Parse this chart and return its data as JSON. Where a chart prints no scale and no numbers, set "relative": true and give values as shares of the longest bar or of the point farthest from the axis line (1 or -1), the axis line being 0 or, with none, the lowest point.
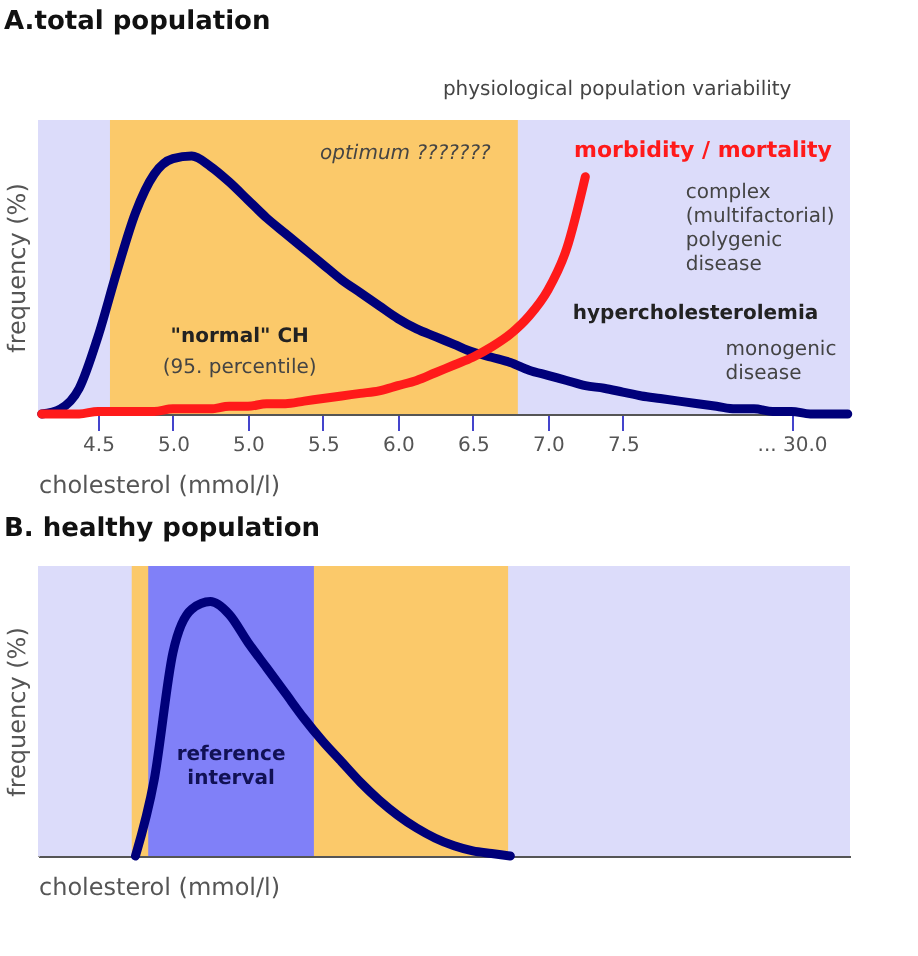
{
  "chart_data": [
    {
      "type": "line",
      "title": "A.total population",
      "xlabel": "cholesterol (mmol/l)",
      "ylabel": "frequency (%)",
      "relative": true,
      "grid": false,
      "tick_labels": "x",
      "line_style": "solid",
      "marker": "none",
      "categories": [
        null,
        null,
        null,
        "4.5",
        null,
        null,
        null,
        "5.0",
        null,
        null,
        null,
        "5.0",
        null,
        null,
        null,
        "5.5",
        null,
        null,
        null,
        "6.0",
        null,
        null,
        null,
        "6.5",
        null,
        null,
        null,
        "7.0",
        null,
        null,
        null,
        "7.5",
        null,
        null,
        null,
        null,
        null,
        null,
        null,
        null,
        "... 30.0",
        null,
        null,
        null
      ],
      "series": [
        {
          "color": "#00007a",
          "values": [
            0,
            0.02,
            0.1,
            0.3,
            0.55,
            0.78,
            0.93,
            0.99,
            1,
            0.96,
            0.9,
            0.83,
            0.76,
            0.7,
            0.64,
            0.58,
            0.52,
            0.47,
            0.42,
            0.37,
            0.33,
            0.3,
            0.27,
            0.24,
            0.22,
            0.2,
            0.17,
            0.15,
            0.13,
            0.11,
            0.1,
            0.085,
            0.07,
            0.06,
            0.05,
            0.04,
            0.03,
            0.02,
            0.02,
            0.01,
            0.01,
            0,
            0,
            0
          ]
        },
        {
          "name": "morbidity / mortality",
          "color": "#ff1a1a",
          "values": [
            0,
            0,
            0,
            0.01,
            0.01,
            0.01,
            0.01,
            0.02,
            0.02,
            0.02,
            0.03,
            0.03,
            0.04,
            0.04,
            0.05,
            0.06,
            0.07,
            0.08,
            0.09,
            0.11,
            0.13,
            0.16,
            0.19,
            0.22,
            0.26,
            0.31,
            0.38,
            0.48,
            0.64,
            0.92,
            null,
            null,
            null,
            null,
            null,
            null,
            null,
            null,
            null,
            null,
            null,
            null,
            null,
            null
          ]
        }
      ],
      "annotations": [
        "physiological population variability",
        "optimum ???????",
        "complex\n(multifactorial)\npolygenic\ndisease",
        "hypercholesterolemia",
        "monogenic\ndisease",
        "\"normal\" CH",
        "(95. percentile)"
      ]
    },
    {
      "type": "line",
      "title": "B. healthy population",
      "xlabel": "cholesterol (mmol/l)",
      "ylabel": "frequency (%)",
      "relative": true,
      "grid": false,
      "tick_labels": false,
      "line_style": "solid",
      "marker": "none",
      "categories": [
        null,
        null,
        null,
        null,
        null,
        null,
        null,
        null,
        null,
        null,
        null,
        null,
        null,
        null,
        null,
        null,
        null,
        null,
        null,
        null,
        null,
        null,
        null,
        null,
        null,
        null,
        null,
        null,
        null,
        null,
        null,
        null,
        null,
        null,
        null,
        null,
        null,
        null,
        null,
        null,
        null,
        null,
        null,
        null
      ],
      "annotations": [
        "reference\ninterval"
      ],
      "series": [
        {
          "color": "#00007a",
          "values": [
            null,
            null,
            null,
            null,
            null,
            0,
            0.3,
            0.8,
            0.97,
            1,
            0.95,
            0.84,
            0.74,
            0.64,
            0.54,
            0.45,
            0.37,
            0.29,
            0.22,
            0.16,
            0.11,
            0.07,
            0.04,
            0.02,
            0.01,
            0,
            null,
            null,
            null,
            null,
            null,
            null,
            null,
            null,
            null,
            null,
            null,
            null,
            null,
            null,
            null,
            null,
            null,
            null
          ]
        }
      ]
    }
  ]
}
